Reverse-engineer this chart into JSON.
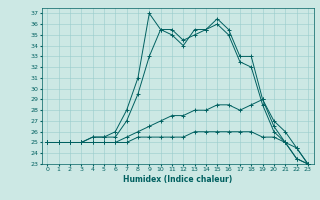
{
  "xlabel": "Humidex (Indice chaleur)",
  "bg_color": "#cce8e4",
  "line_color": "#006060",
  "grid_color": "#99cccc",
  "xlim": [
    -0.5,
    23.5
  ],
  "ylim": [
    23,
    37.5
  ],
  "yticks": [
    23,
    24,
    25,
    26,
    27,
    28,
    29,
    30,
    31,
    32,
    33,
    34,
    35,
    36,
    37
  ],
  "xticks": [
    0,
    1,
    2,
    3,
    4,
    5,
    6,
    7,
    8,
    9,
    10,
    11,
    12,
    13,
    14,
    15,
    16,
    17,
    18,
    19,
    20,
    21,
    22,
    23
  ],
  "lines": [
    {
      "x": [
        0,
        1,
        2,
        3,
        4,
        5,
        6,
        7,
        8,
        9,
        10,
        11,
        12,
        13,
        14,
        15,
        16,
        17,
        18,
        19,
        20,
        21,
        22,
        23
      ],
      "y": [
        25,
        25,
        25,
        25,
        25.5,
        25.5,
        26,
        28,
        31,
        37,
        35.5,
        35,
        34,
        35.5,
        35.5,
        36.5,
        35.5,
        33,
        33,
        29,
        26.5,
        25,
        23.5,
        23
      ]
    },
    {
      "x": [
        0,
        1,
        2,
        3,
        4,
        5,
        6,
        7,
        8,
        9,
        10,
        11,
        12,
        13,
        14,
        15,
        16,
        17,
        18,
        19,
        20,
        21,
        22,
        23
      ],
      "y": [
        25,
        25,
        25,
        25,
        25.5,
        25.5,
        25.5,
        27,
        29.5,
        33,
        35.5,
        35.5,
        34.5,
        35,
        35.5,
        36,
        35,
        32.5,
        32,
        28.5,
        26,
        25,
        23.5,
        23
      ]
    },
    {
      "x": [
        0,
        1,
        2,
        3,
        4,
        5,
        6,
        7,
        8,
        9,
        10,
        11,
        12,
        13,
        14,
        15,
        16,
        17,
        18,
        19,
        20,
        21,
        22,
        23
      ],
      "y": [
        25,
        25,
        25,
        25,
        25,
        25,
        25,
        25.5,
        26,
        26.5,
        27,
        27.5,
        27.5,
        28,
        28,
        28.5,
        28.5,
        28,
        28.5,
        29,
        27,
        26,
        24.5,
        23
      ]
    },
    {
      "x": [
        0,
        1,
        2,
        3,
        4,
        5,
        6,
        7,
        8,
        9,
        10,
        11,
        12,
        13,
        14,
        15,
        16,
        17,
        18,
        19,
        20,
        21,
        22,
        23
      ],
      "y": [
        25,
        25,
        25,
        25,
        25,
        25,
        25,
        25,
        25.5,
        25.5,
        25.5,
        25.5,
        25.5,
        26,
        26,
        26,
        26,
        26,
        26,
        25.5,
        25.5,
        25,
        24.5,
        23
      ]
    }
  ]
}
